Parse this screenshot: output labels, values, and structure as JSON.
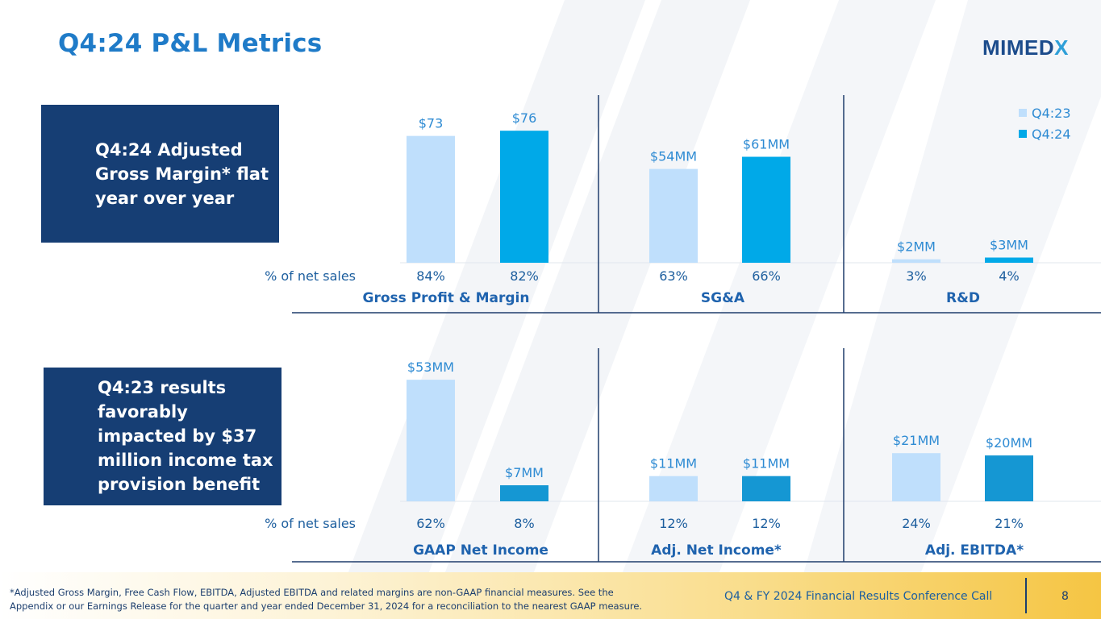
{
  "title": "Q4:24 P&L Metrics",
  "logo": {
    "main": "MIMED",
    "accent": "X"
  },
  "callouts": [
    {
      "lines": [
        "Q4:24 Adjusted",
        "Gross Margin* flat",
        "year over  year"
      ]
    },
    {
      "lines": [
        "Q4:23 results",
        "favorably",
        "impacted by $37",
        "million income tax",
        "provision benefit"
      ]
    }
  ],
  "row_label": "% of net sales",
  "colors": {
    "q423": "#bfdffc",
    "q424_top": "#00a9e8",
    "q424_bottom": "#1597d3",
    "label": "#2e8bd3",
    "section": "#1f63ae",
    "divider": "#1f3d6c",
    "pct": "#1c5e9e"
  },
  "chart_data": [
    {
      "type": "bar",
      "title": "Gross Profit & Margin",
      "categories": [
        "Q4:23",
        "Q4:24"
      ],
      "series": [
        {
          "name": "Gross Profit ($MM)",
          "values": [
            73,
            76
          ]
        }
      ],
      "data_labels": [
        "$73",
        "$76"
      ],
      "pct_of_net_sales": [
        "84%",
        "82%"
      ],
      "ylim": [
        0,
        90
      ]
    },
    {
      "type": "bar",
      "title": "SG&A",
      "categories": [
        "Q4:23",
        "Q4:24"
      ],
      "series": [
        {
          "name": "SG&A ($MM)",
          "values": [
            54,
            61
          ]
        }
      ],
      "data_labels": [
        "$54MM",
        "$61MM"
      ],
      "pct_of_net_sales": [
        "63%",
        "66%"
      ],
      "ylim": [
        0,
        90
      ]
    },
    {
      "type": "bar",
      "title": "R&D",
      "categories": [
        "Q4:23",
        "Q4:24"
      ],
      "series": [
        {
          "name": "R&D ($MM)",
          "values": [
            2,
            3
          ]
        }
      ],
      "data_labels": [
        "$2MM",
        "$3MM"
      ],
      "pct_of_net_sales": [
        "3%",
        "4%"
      ],
      "ylim": [
        0,
        90
      ],
      "legend": {
        "entries": [
          "Q4:23",
          "Q4:24"
        ],
        "position": "top-right"
      }
    },
    {
      "type": "bar",
      "title": "GAAP Net Income",
      "categories": [
        "Q4:23",
        "Q4:24"
      ],
      "series": [
        {
          "name": "GAAP Net Income ($MM)",
          "values": [
            53,
            7
          ]
        }
      ],
      "data_labels": [
        "$53MM",
        "$7MM"
      ],
      "pct_of_net_sales": [
        "62%",
        "8%"
      ],
      "ylim": [
        0,
        65
      ]
    },
    {
      "type": "bar",
      "title": "Adj. Net Income*",
      "categories": [
        "Q4:23",
        "Q4:24"
      ],
      "series": [
        {
          "name": "Adj. Net Income ($MM)",
          "values": [
            11,
            11
          ]
        }
      ],
      "data_labels": [
        "$11MM",
        "$11MM"
      ],
      "pct_of_net_sales": [
        "12%",
        "12%"
      ],
      "ylim": [
        0,
        65
      ]
    },
    {
      "type": "bar",
      "title": "Adj. EBITDA*",
      "categories": [
        "Q4:23",
        "Q4:24"
      ],
      "series": [
        {
          "name": "Adj. EBITDA ($MM)",
          "values": [
            21,
            20
          ]
        }
      ],
      "data_labels": [
        "$21MM",
        "$20MM"
      ],
      "pct_of_net_sales": [
        "24%",
        "21%"
      ],
      "ylim": [
        0,
        65
      ]
    }
  ],
  "footer": {
    "footnote_lines": [
      "*Adjusted Gross Margin, Free Cash Flow, EBITDA, Adjusted EBITDA and related margins are non-GAAP financial measures. See the",
      "Appendix or our Earnings Release for the quarter and year ended December 31, 2024 for a reconciliation to the nearest GAAP measure."
    ],
    "event": "Q4 & FY 2024 Financial Results Conference Call",
    "page": "8"
  }
}
